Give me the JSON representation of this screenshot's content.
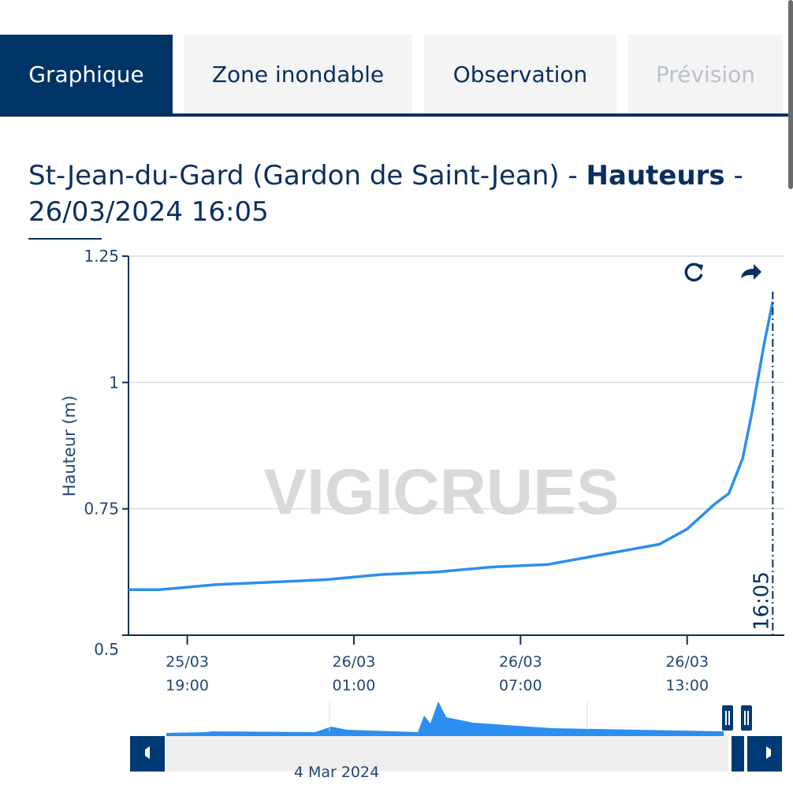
{
  "tabs": [
    {
      "label": "Graphique",
      "state": "active"
    },
    {
      "label": "Zone inondable",
      "state": "normal"
    },
    {
      "label": "Observation",
      "state": "normal"
    },
    {
      "label": "Prévision",
      "state": "disabled"
    }
  ],
  "title": {
    "station": "St-Jean-du-Gard (Gardon de Saint-Jean)",
    "sep1": " - ",
    "measure": "Hauteurs",
    "sep2": " -",
    "datetime": "26/03/2024 16:05"
  },
  "toolbar": {
    "reset_icon": "refresh-icon",
    "share_icon": "share-arrow-icon"
  },
  "watermark": "VIGICRUES",
  "colors": {
    "series": "#2b8ef0",
    "primary": "#003366"
  },
  "chart_data": {
    "type": "line",
    "ylabel": "Hauteur (m)",
    "xlabel": "",
    "ylim": [
      0.5,
      1.25
    ],
    "xlim": [
      "2024-03-25T16:53",
      "2024-03-26T16:30"
    ],
    "yticks": [
      {
        "v": 0.5,
        "label": "0.5"
      },
      {
        "v": 0.75,
        "label": "0.75"
      },
      {
        "v": 1,
        "label": "1"
      },
      {
        "v": 1.25,
        "label": "1.25"
      }
    ],
    "xticks": [
      {
        "t": "2024-03-25T19:00",
        "line1": "25/03",
        "line2": "19:00"
      },
      {
        "t": "2024-03-26T01:00",
        "line1": "26/03",
        "line2": "01:00"
      },
      {
        "t": "2024-03-26T07:00",
        "line1": "26/03",
        "line2": "07:00"
      },
      {
        "t": "2024-03-26T13:00",
        "line1": "26/03",
        "line2": "13:00"
      }
    ],
    "grid": true,
    "marker_line": {
      "t": "2024-03-26T16:05",
      "label": "16:05"
    },
    "series": [
      {
        "points": [
          [
            "2024-03-25T16:53",
            0.59
          ],
          [
            "2024-03-25T18:00",
            0.59
          ],
          [
            "2024-03-25T20:00",
            0.6
          ],
          [
            "2024-03-25T22:00",
            0.605
          ],
          [
            "2024-03-26T00:00",
            0.61
          ],
          [
            "2024-03-26T02:00",
            0.62
          ],
          [
            "2024-03-26T04:00",
            0.625
          ],
          [
            "2024-03-26T06:00",
            0.635
          ],
          [
            "2024-03-26T08:00",
            0.64
          ],
          [
            "2024-03-26T10:00",
            0.66
          ],
          [
            "2024-03-26T12:00",
            0.68
          ],
          [
            "2024-03-26T13:00",
            0.71
          ],
          [
            "2024-03-26T14:00",
            0.76
          ],
          [
            "2024-03-26T14:30",
            0.78
          ],
          [
            "2024-03-26T15:00",
            0.85
          ],
          [
            "2024-03-26T15:20",
            0.94
          ],
          [
            "2024-03-26T15:45",
            1.07
          ],
          [
            "2024-03-26T16:05",
            1.16
          ]
        ]
      }
    ],
    "navigator": {
      "label": "4 Mar 2024"
    }
  }
}
